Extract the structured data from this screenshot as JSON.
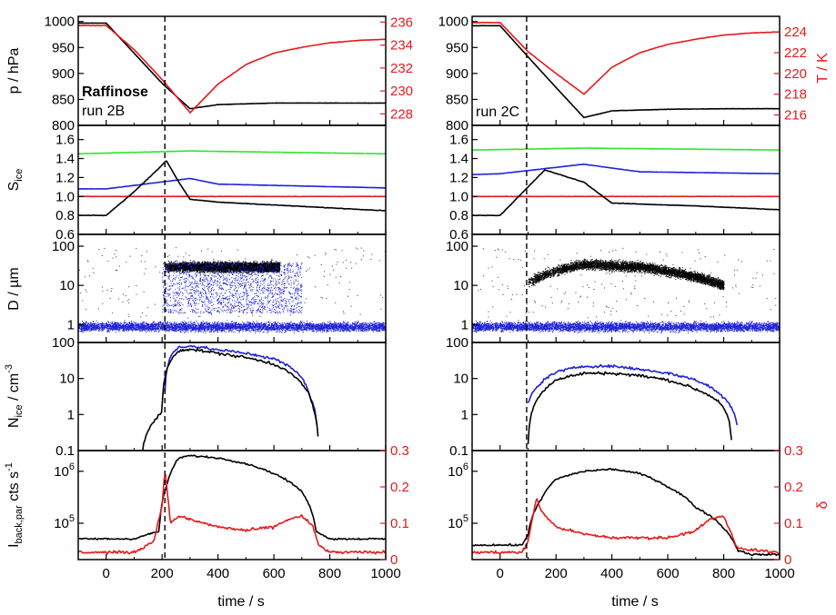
{
  "figure": {
    "x_label": "time / s",
    "x_ticks": [
      "0",
      "200",
      "400",
      "600",
      "800",
      "1000"
    ],
    "colors": {
      "black": "#000000",
      "red": "#e41a1c",
      "blue": "#1f22d6",
      "green": "#2ee52e"
    }
  },
  "columns": [
    {
      "name": "Raffinose run 2B",
      "annotation_bold": "Raffinose",
      "annotation": "run 2B",
      "marker_time": 210
    },
    {
      "name": "run 2C",
      "annotation_bold": "",
      "annotation": "run 2C",
      "marker_time": 95
    }
  ],
  "rows": {
    "pressure": {
      "ylabel": "p / hPa",
      "ticks": [
        "800",
        "850",
        "900",
        "950",
        "1000"
      ],
      "right_label": "T / K",
      "right_ticks_col1": [
        "228",
        "230",
        "232",
        "234",
        "236"
      ],
      "right_ticks_col2": [
        "216",
        "218",
        "220",
        "222",
        "224"
      ]
    },
    "sice": {
      "ylabel_main": "S",
      "ylabel_sub": "ice",
      "ticks": [
        "0.6",
        "0.8",
        "1.0",
        "1.2",
        "1.4",
        "1.6"
      ]
    },
    "diameter": {
      "ylabel": "D / µm",
      "ticks": [
        "1",
        "10",
        "100"
      ]
    },
    "nice": {
      "ylabel_main": "N",
      "ylabel_sub": "ice",
      "ylabel_unit": " / cm",
      "ylabel_exp": "-3",
      "ticks": [
        "0.1",
        "1",
        "10",
        "100"
      ]
    },
    "backscatter": {
      "ylabel_main": "I",
      "ylabel_sub": "back,par",
      "ylabel_unit": " cts s",
      "ylabel_exp": "-1",
      "ticks": [
        "10",
        "10"
      ],
      "tick_exps": [
        "5",
        "6"
      ],
      "right_label": "δ",
      "right_ticks": [
        "0",
        "0.1",
        "0.2",
        "0.3"
      ]
    }
  },
  "chart_data": [
    {
      "type": "line",
      "panel": "pressure-temperature",
      "column": "run 2B",
      "ylabel": "p / hPa",
      "y2label": "T / K",
      "xlim": [
        -100,
        1000
      ],
      "ylim": [
        800,
        1010
      ],
      "y2lim": [
        227,
        236.5
      ],
      "series": [
        {
          "axis": "p",
          "color": "black",
          "x": [
            -100,
            0,
            100,
            200,
            300,
            400,
            600,
            800,
            1000
          ],
          "y": [
            997,
            997,
            939,
            881,
            832,
            840,
            843,
            843,
            843
          ]
        },
        {
          "axis": "T",
          "color": "red",
          "x": [
            -100,
            0,
            100,
            200,
            300,
            400,
            500,
            600,
            700,
            800,
            900,
            1000
          ],
          "y": [
            235.7,
            235.7,
            233.6,
            231.0,
            228.1,
            230.6,
            232.3,
            233.3,
            233.8,
            234.2,
            234.4,
            234.5
          ]
        }
      ]
    },
    {
      "type": "line",
      "panel": "pressure-temperature",
      "column": "run 2C",
      "ylabel": "p / hPa",
      "y2label": "T / K",
      "xlim": [
        -100,
        1000
      ],
      "ylim": [
        800,
        1010
      ],
      "y2lim": [
        215,
        225.5
      ],
      "series": [
        {
          "axis": "p",
          "color": "black",
          "x": [
            -100,
            0,
            100,
            200,
            300,
            400,
            600,
            800,
            1000
          ],
          "y": [
            992,
            992,
            932,
            873,
            815,
            828,
            831,
            832,
            832
          ]
        },
        {
          "axis": "T",
          "color": "red",
          "x": [
            -100,
            0,
            100,
            200,
            300,
            400,
            500,
            600,
            700,
            800,
            900,
            1000
          ],
          "y": [
            224.9,
            224.9,
            222.1,
            220.0,
            218.0,
            220.6,
            222.0,
            222.8,
            223.3,
            223.7,
            223.9,
            224.0
          ]
        }
      ]
    },
    {
      "type": "line",
      "panel": "saturation",
      "column": "run 2B",
      "ylabel": "S ice",
      "xlim": [
        -100,
        1000
      ],
      "ylim": [
        0.6,
        1.75
      ],
      "series": [
        {
          "color": "green",
          "x": [
            -100,
            300,
            1000
          ],
          "y": [
            1.45,
            1.48,
            1.45
          ]
        },
        {
          "color": "blue",
          "x": [
            -100,
            0,
            300,
            400,
            1000
          ],
          "y": [
            1.08,
            1.08,
            1.19,
            1.13,
            1.09
          ]
        },
        {
          "color": "red",
          "x": [
            -100,
            1000
          ],
          "y": [
            1.0,
            1.0
          ]
        },
        {
          "color": "black",
          "x": [
            -100,
            0,
            100,
            200,
            215,
            260,
            300,
            400,
            600,
            1000
          ],
          "y": [
            0.8,
            0.8,
            1.05,
            1.33,
            1.38,
            1.15,
            0.97,
            0.94,
            0.91,
            0.85
          ]
        }
      ]
    },
    {
      "type": "line",
      "panel": "saturation",
      "column": "run 2C",
      "ylabel": "S ice",
      "xlim": [
        -100,
        1000
      ],
      "ylim": [
        0.6,
        1.75
      ],
      "series": [
        {
          "color": "green",
          "x": [
            -100,
            300,
            1000
          ],
          "y": [
            1.49,
            1.51,
            1.49
          ]
        },
        {
          "color": "blue",
          "x": [
            -100,
            0,
            300,
            500,
            1000
          ],
          "y": [
            1.23,
            1.24,
            1.34,
            1.26,
            1.24
          ]
        },
        {
          "color": "red",
          "x": [
            -100,
            1000
          ],
          "y": [
            1.0,
            1.0
          ]
        },
        {
          "color": "black",
          "x": [
            -100,
            0,
            100,
            160,
            300,
            400,
            700,
            1000
          ],
          "y": [
            0.8,
            0.8,
            1.1,
            1.28,
            1.15,
            0.93,
            0.9,
            0.86
          ]
        }
      ]
    },
    {
      "type": "scatter",
      "panel": "diameter",
      "column": "run 2B",
      "ylabel": "D / µm",
      "xlim": [
        -100,
        1000
      ],
      "ylim": [
        0.35,
        200
      ],
      "log_y": true,
      "series": [
        {
          "color": "blue",
          "description": "dense band",
          "x_range": [
            -100,
            1000
          ],
          "y_range": [
            0.55,
            1.5
          ]
        },
        {
          "color": "black",
          "description": "ice particles",
          "x_range": [
            210,
            620
          ],
          "y_range": [
            15,
            60
          ]
        },
        {
          "color": "blue",
          "description": "sparse",
          "x_range": [
            200,
            700
          ],
          "y_range": [
            2,
            40
          ]
        }
      ]
    },
    {
      "type": "scatter",
      "panel": "diameter",
      "column": "run 2C",
      "ylabel": "D / µm",
      "xlim": [
        -100,
        1000
      ],
      "ylim": [
        0.35,
        200
      ],
      "log_y": true,
      "series": [
        {
          "color": "blue",
          "description": "dense band",
          "x_range": [
            -100,
            1000
          ],
          "y_range": [
            0.55,
            1.5
          ]
        },
        {
          "color": "black",
          "description": "ice particles",
          "x_range": [
            100,
            800
          ],
          "y_range": [
            5,
            60
          ]
        }
      ]
    },
    {
      "type": "line",
      "panel": "ice-number",
      "column": "run 2B",
      "ylabel": "N ice / cm-3",
      "xlim": [
        -100,
        1000
      ],
      "ylim": [
        0.1,
        100
      ],
      "log_y": true,
      "series": [
        {
          "color": "blue",
          "x": [
            210,
            230,
            260,
            300,
            400,
            500,
            600,
            680,
            730,
            755
          ],
          "y": [
            4,
            40,
            75,
            80,
            62,
            50,
            35,
            15,
            3,
            0.4
          ]
        },
        {
          "color": "black",
          "x": [
            130,
            170,
            200,
            220,
            260,
            300,
            400,
            500,
            600,
            680,
            740,
            760
          ],
          "y": [
            0.1,
            0.6,
            1.2,
            20,
            60,
            65,
            50,
            38,
            25,
            10,
            1.5,
            0.1
          ]
        }
      ]
    },
    {
      "type": "line",
      "panel": "ice-number",
      "column": "run 2C",
      "ylabel": "N ice / cm-3",
      "xlim": [
        -100,
        1000
      ],
      "ylim": [
        0.1,
        100
      ],
      "log_y": true,
      "series": [
        {
          "color": "blue",
          "x": [
            100,
            150,
            200,
            300,
            400,
            500,
            600,
            700,
            780,
            850
          ],
          "y": [
            2,
            8,
            15,
            22,
            22,
            18,
            14,
            9,
            4,
            0.4
          ]
        },
        {
          "color": "black",
          "x": [
            100,
            150,
            200,
            300,
            400,
            500,
            600,
            700,
            790,
            830
          ],
          "y": [
            0.15,
            4,
            9,
            14,
            14,
            12,
            9,
            5,
            2,
            0.1
          ]
        }
      ]
    },
    {
      "type": "line",
      "panel": "backscatter",
      "column": "run 2B",
      "ylabel": "I back,par cts s-1",
      "y2label": "δ",
      "xlim": [
        -100,
        1000
      ],
      "ylim": [
        20000,
        2500000
      ],
      "log_y": true,
      "y2lim": [
        0,
        0.3
      ],
      "series": [
        {
          "axis": "I",
          "color": "black",
          "x": [
            -100,
            100,
            190,
            220,
            260,
            300,
            400,
            500,
            600,
            700,
            750,
            800,
            1000
          ],
          "y": [
            50000,
            50000,
            70000,
            600000,
            1800000,
            2000000,
            1800000,
            1400000,
            900000,
            400000,
            70000,
            50000,
            50000
          ]
        },
        {
          "axis": "δ",
          "color": "red",
          "x": [
            -100,
            100,
            170,
            200,
            210,
            230,
            260,
            300,
            400,
            500,
            600,
            650,
            700,
            740,
            760,
            800,
            1000
          ],
          "y": [
            0.02,
            0.02,
            0.05,
            0.15,
            0.25,
            0.1,
            0.12,
            0.11,
            0.09,
            0.08,
            0.09,
            0.11,
            0.12,
            0.09,
            0.04,
            0.02,
            0.02
          ]
        }
      ]
    },
    {
      "type": "line",
      "panel": "backscatter",
      "column": "run 2C",
      "ylabel": "I back,par cts s-1",
      "y2label": "δ",
      "xlim": [
        -100,
        1000
      ],
      "ylim": [
        20000,
        2500000
      ],
      "log_y": true,
      "y2lim": [
        0,
        0.3
      ],
      "series": [
        {
          "axis": "I",
          "color": "black",
          "x": [
            -100,
            80,
            100,
            150,
            200,
            300,
            400,
            500,
            600,
            700,
            800,
            850,
            900,
            1000
          ],
          "y": [
            38000,
            38000,
            60000,
            300000,
            700000,
            1000000,
            1100000,
            900000,
            500000,
            200000,
            80000,
            30000,
            25000,
            25000
          ]
        },
        {
          "axis": "δ",
          "color": "red",
          "x": [
            -100,
            80,
            100,
            130,
            150,
            200,
            300,
            400,
            500,
            600,
            700,
            750,
            800,
            850,
            1000
          ],
          "y": [
            0.02,
            0.02,
            0.05,
            0.17,
            0.13,
            0.09,
            0.07,
            0.06,
            0.06,
            0.06,
            0.08,
            0.11,
            0.12,
            0.03,
            0.02
          ]
        }
      ]
    }
  ]
}
